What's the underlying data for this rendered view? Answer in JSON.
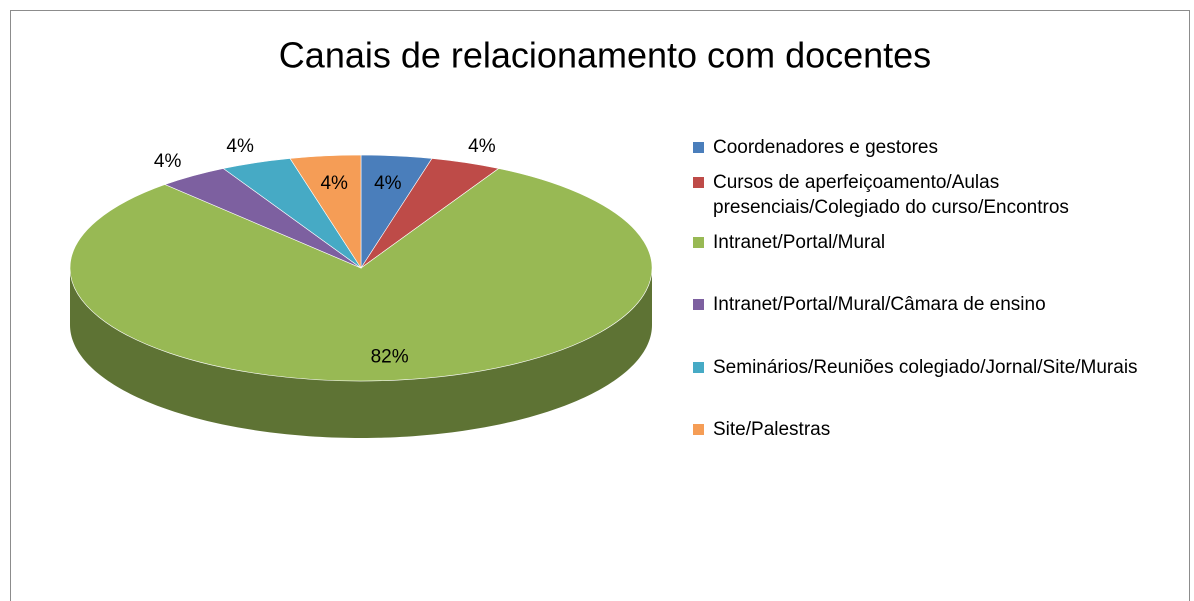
{
  "chart_data": {
    "type": "pie",
    "title": "Canais de relacionamento com docentes",
    "categories": [
      "Coordenadores e gestores",
      "Cursos de aperfeiçoamento/Aulas presenciais/Colegiado do curso/Encontros",
      "Intranet/Portal/Mural",
      "Intranet/Portal/Mural/Câmara de ensino",
      "Seminários/Reuniões colegiado/Jornal/Site/Murais",
      "Site/Palestras"
    ],
    "values": [
      4,
      4,
      82,
      4,
      4,
      4
    ],
    "value_labels": [
      "4%",
      "4%",
      "82%",
      "4%",
      "4%",
      "4%"
    ],
    "colors": [
      "#4a7ebb",
      "#be4b48",
      "#98b954",
      "#7d60a0",
      "#46aac5",
      "#f59d56"
    ],
    "legend": "right"
  }
}
